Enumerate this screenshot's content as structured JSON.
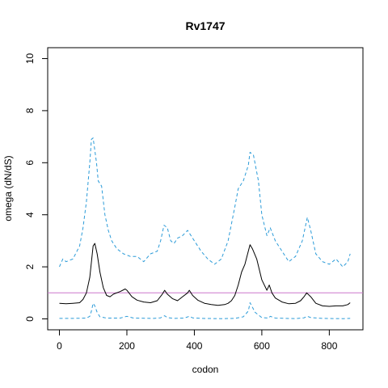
{
  "chart_data": {
    "type": "line",
    "title": "Rv1747",
    "xlabel": "codon",
    "ylabel": "omega (dN/dS)",
    "xlim": [
      0,
      865
    ],
    "ylim": [
      0,
      10
    ],
    "x_ticks": [
      0,
      200,
      400,
      600,
      800
    ],
    "y_ticks": [
      0,
      2,
      4,
      6,
      8,
      10
    ],
    "grid": false,
    "legend": "none",
    "reference_line": {
      "y": 1,
      "color": "#cc77cc"
    },
    "series": [
      {
        "style": "solid",
        "color": "#000000",
        "x": [
          0,
          20,
          40,
          60,
          70,
          80,
          90,
          100,
          105,
          112,
          120,
          130,
          140,
          150,
          160,
          180,
          195,
          200,
          215,
          230,
          250,
          270,
          290,
          305,
          312,
          320,
          335,
          350,
          365,
          380,
          385,
          395,
          410,
          430,
          450,
          470,
          490,
          500,
          510,
          520,
          530,
          540,
          550,
          560,
          565,
          572,
          585,
          600,
          615,
          622,
          630,
          640,
          660,
          680,
          700,
          715,
          725,
          733,
          745,
          760,
          780,
          800,
          820,
          840,
          855,
          862
        ],
        "y": [
          0.6,
          0.58,
          0.6,
          0.62,
          0.75,
          1.0,
          1.6,
          2.8,
          2.9,
          2.5,
          1.8,
          1.2,
          0.9,
          0.85,
          0.95,
          1.05,
          1.15,
          1.1,
          0.85,
          0.72,
          0.65,
          0.62,
          0.7,
          0.95,
          1.1,
          0.95,
          0.78,
          0.7,
          0.85,
          1.0,
          1.1,
          0.9,
          0.72,
          0.6,
          0.55,
          0.52,
          0.55,
          0.6,
          0.7,
          0.9,
          1.3,
          1.8,
          2.1,
          2.6,
          2.85,
          2.7,
          2.3,
          1.5,
          1.1,
          1.3,
          1.0,
          0.8,
          0.65,
          0.58,
          0.6,
          0.7,
          0.85,
          1.0,
          0.85,
          0.6,
          0.5,
          0.48,
          0.5,
          0.5,
          0.55,
          0.62
        ]
      },
      {
        "style": "dashed",
        "color": "#2b9bd8",
        "x": [
          0,
          10,
          20,
          40,
          60,
          70,
          80,
          90,
          95,
          100,
          110,
          115,
          125,
          135,
          145,
          155,
          170,
          190,
          210,
          230,
          250,
          270,
          290,
          300,
          310,
          320,
          330,
          340,
          350,
          365,
          380,
          390,
          400,
          420,
          440,
          460,
          480,
          500,
          520,
          530,
          545,
          560,
          565,
          575,
          590,
          600,
          615,
          625,
          640,
          660,
          680,
          700,
          720,
          735,
          745,
          760,
          780,
          800,
          820,
          840,
          855,
          862
        ],
        "y": [
          2.0,
          2.3,
          2.2,
          2.3,
          2.8,
          3.5,
          4.5,
          6.0,
          6.9,
          6.95,
          6.0,
          5.3,
          5.1,
          4.0,
          3.4,
          3.0,
          2.7,
          2.5,
          2.4,
          2.4,
          2.2,
          2.5,
          2.6,
          3.0,
          3.6,
          3.5,
          3.0,
          2.9,
          3.1,
          3.2,
          3.4,
          3.2,
          3.0,
          2.6,
          2.3,
          2.1,
          2.3,
          3.0,
          4.3,
          5.0,
          5.3,
          5.9,
          6.4,
          6.3,
          5.3,
          4.0,
          3.2,
          3.5,
          3.0,
          2.6,
          2.2,
          2.4,
          3.0,
          3.9,
          3.4,
          2.5,
          2.2,
          2.1,
          2.3,
          2.0,
          2.2,
          2.5
        ]
      },
      {
        "style": "dashed",
        "color": "#2b9bd8",
        "x": [
          0,
          40,
          80,
          90,
          95,
          100,
          105,
          112,
          120,
          140,
          180,
          200,
          220,
          280,
          300,
          312,
          320,
          340,
          370,
          385,
          395,
          420,
          480,
          520,
          545,
          560,
          565,
          570,
          580,
          600,
          620,
          625,
          640,
          700,
          725,
          735,
          745,
          780,
          840,
          862
        ],
        "y": [
          0.02,
          0.02,
          0.03,
          0.1,
          0.3,
          0.6,
          0.5,
          0.25,
          0.08,
          0.03,
          0.03,
          0.1,
          0.03,
          0.02,
          0.04,
          0.12,
          0.05,
          0.02,
          0.03,
          0.1,
          0.04,
          0.02,
          0.01,
          0.02,
          0.08,
          0.3,
          0.62,
          0.5,
          0.25,
          0.05,
          0.03,
          0.1,
          0.03,
          0.01,
          0.04,
          0.1,
          0.05,
          0.02,
          0.01,
          0.02
        ]
      }
    ]
  }
}
